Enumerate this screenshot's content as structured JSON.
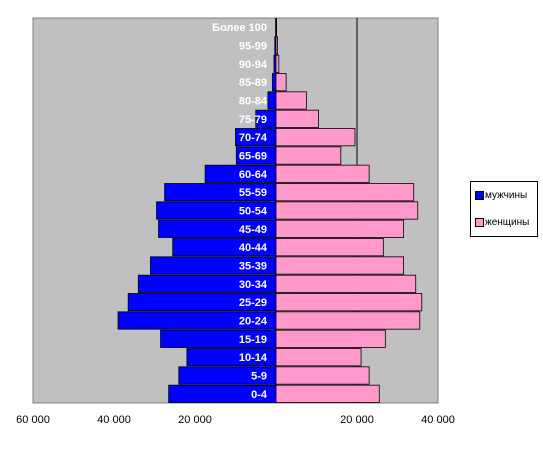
{
  "chart_data": {
    "type": "bar",
    "orientation": "horizontal",
    "title": "",
    "xlabel": "",
    "ylabel": "",
    "categories": [
      "0-4",
      "5-9",
      "10-14",
      "15-19",
      "20-24",
      "25-29",
      "30-34",
      "35-39",
      "40-44",
      "45-49",
      "50-54",
      "55-59",
      "60-64",
      "65-69",
      "70-74",
      "75-79",
      "80-84",
      "85-89",
      "90-94",
      "95-99",
      "Более 100"
    ],
    "series": [
      {
        "name": "мужчины",
        "color": "#0000ff",
        "values": [
          26500,
          24000,
          22000,
          28500,
          39000,
          36500,
          34000,
          31000,
          25500,
          29000,
          29500,
          27500,
          17500,
          9800,
          10000,
          5000,
          2000,
          900,
          500,
          300,
          100
        ]
      },
      {
        "name": "женщины",
        "color": "#ff99cc",
        "values": [
          25500,
          23000,
          21000,
          27000,
          35500,
          36000,
          34500,
          31500,
          26500,
          31500,
          35000,
          34000,
          23000,
          16000,
          19500,
          10500,
          7500,
          2500,
          700,
          400,
          150
        ]
      }
    ],
    "xlim": [
      -60000,
      40000
    ],
    "xticks": [
      -60000,
      -40000,
      -20000,
      20000,
      40000
    ],
    "xtick_labels": [
      "60 000",
      "40 000",
      "20 000",
      "20 000",
      "40 000"
    ],
    "grid": "vertical lines at 0 and 20 000",
    "plot_background": "#c0c0c0",
    "legend_position": "right"
  }
}
